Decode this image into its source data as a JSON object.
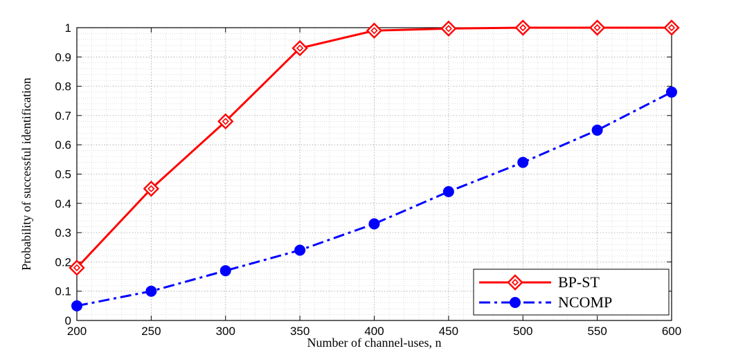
{
  "chart_data": {
    "type": "line",
    "title": "",
    "xlabel": "Number of channel-uses, n",
    "ylabel": "Probability of successful identification",
    "xlim": [
      200,
      600
    ],
    "ylim": [
      0,
      1
    ],
    "xticks": [
      200,
      250,
      300,
      350,
      400,
      450,
      500,
      550,
      600
    ],
    "yticks": [
      0,
      0.1,
      0.2,
      0.3,
      0.4,
      0.5,
      0.6,
      0.7,
      0.8,
      0.9,
      1
    ],
    "ytick_labels": [
      "0",
      "0.1",
      "0.2",
      "0.3",
      "0.4",
      "0.5",
      "0.6",
      "0.7",
      "0.8",
      "0.9",
      "1"
    ],
    "grid": true,
    "minor_grid": true,
    "legend_position": "bottom-right",
    "x": [
      200,
      250,
      300,
      350,
      400,
      450,
      500,
      550,
      600
    ],
    "series": [
      {
        "name": "BP-ST",
        "color": "#ff0000",
        "line_style": "solid",
        "marker": "diamond",
        "values": [
          0.18,
          0.45,
          0.68,
          0.93,
          0.99,
          0.997,
          1.0,
          1.0,
          1.0
        ]
      },
      {
        "name": "NCOMP",
        "color": "#0000ff",
        "line_style": "dash-dot",
        "marker": "circle",
        "values": [
          0.05,
          0.1,
          0.17,
          0.24,
          0.33,
          0.44,
          0.54,
          0.65,
          0.78
        ]
      }
    ]
  }
}
